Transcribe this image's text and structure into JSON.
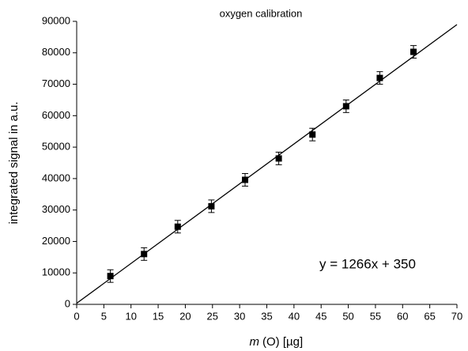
{
  "chart_data": {
    "type": "scatter",
    "title": "oxygen calibration",
    "xlabel_var": "m",
    "xlabel": "(O) [µg]",
    "ylabel": "integrated signal in a.u.",
    "x": [
      6.2,
      12.4,
      18.6,
      24.8,
      31,
      37.2,
      43.4,
      49.6,
      55.8,
      62
    ],
    "values": [
      9000,
      16000,
      24700,
      31200,
      39600,
      46400,
      54000,
      63000,
      72000,
      80300
    ],
    "errors": [
      2000,
      2000,
      2000,
      2000,
      2000,
      2000,
      2000,
      2000,
      2000,
      2000
    ],
    "color": "#000000",
    "fit": {
      "slope": 1266,
      "intercept": 350
    },
    "annotation": "y = 1266x + 350",
    "xlim": [
      0,
      70
    ],
    "xticks": [
      0,
      5,
      10,
      15,
      20,
      25,
      30,
      35,
      40,
      45,
      50,
      55,
      60,
      65,
      70
    ],
    "ylim": [
      0,
      90000
    ],
    "yticks": [
      0,
      10000,
      20000,
      30000,
      40000,
      50000,
      60000,
      70000,
      80000,
      90000
    ]
  }
}
